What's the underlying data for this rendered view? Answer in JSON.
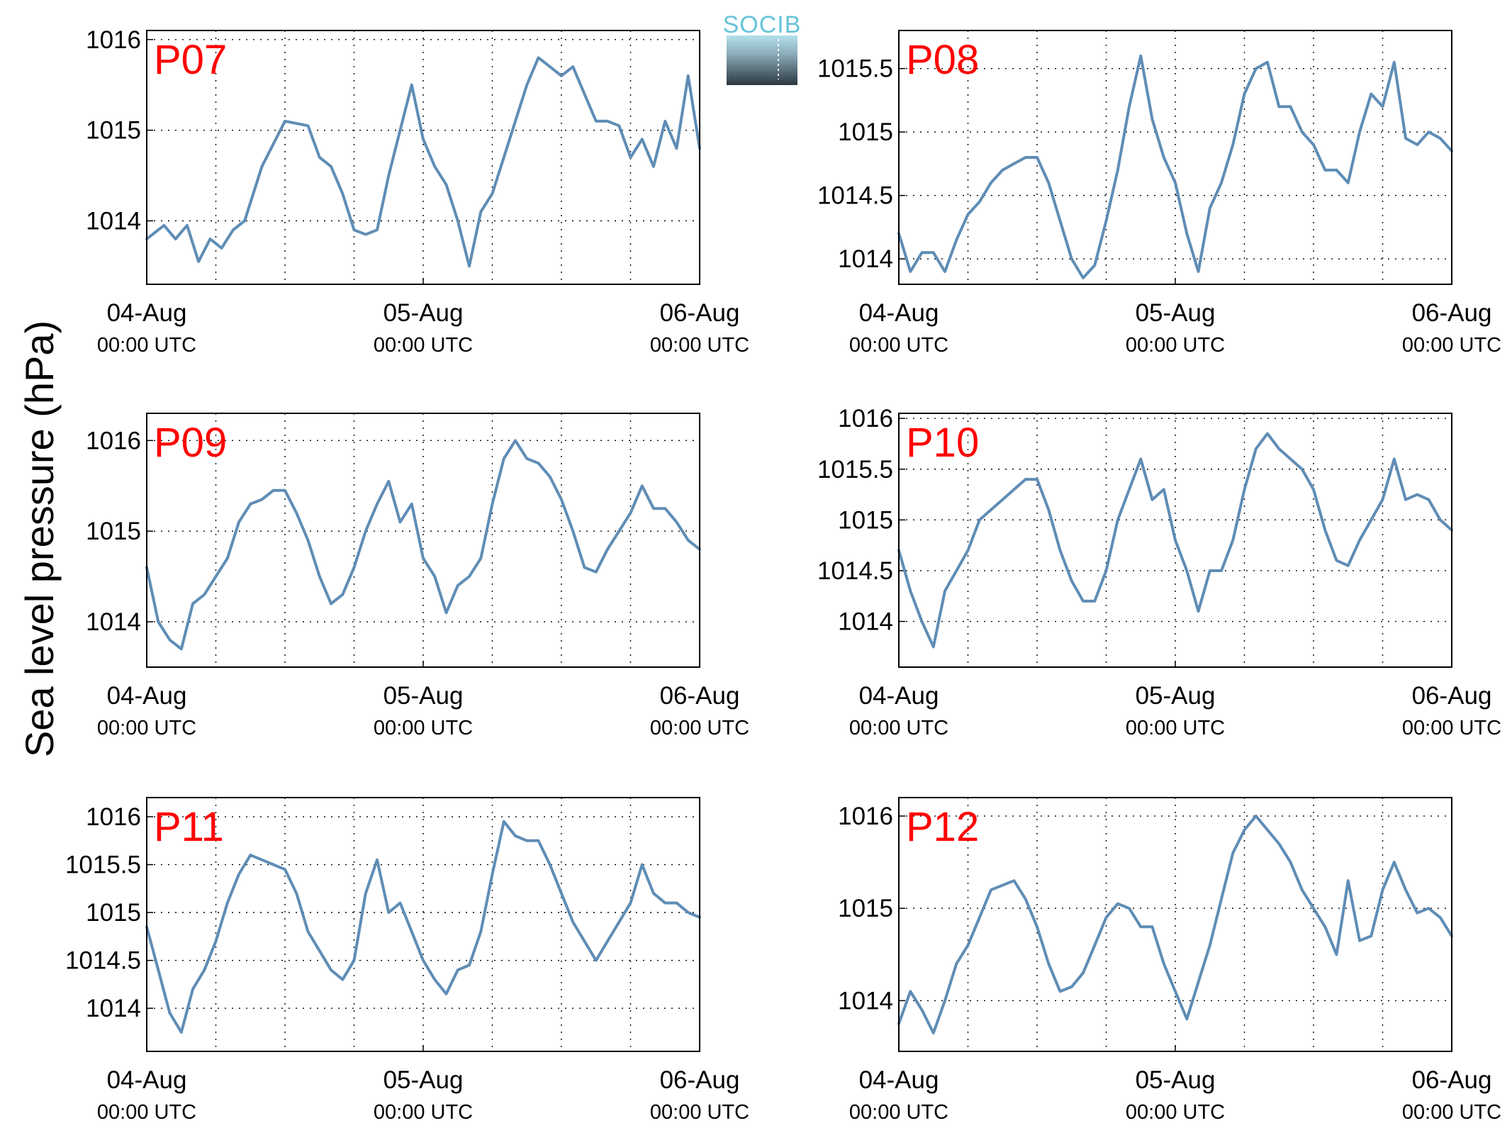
{
  "figure": {
    "ylabel": "Sea level pressure (hPa)",
    "logo_text": "SOCIB"
  },
  "colors": {
    "line": "#5f8db5",
    "panel_label": "#ff0000",
    "grid": "#000000",
    "logo_text": "#66c3d9",
    "logo_dark": "#2b3740"
  },
  "chart_data": [
    {
      "type": "line",
      "title": "P07",
      "x_range": [
        "2014-08-04 00:00",
        "2014-08-06 00:00"
      ],
      "x_ticks": [
        {
          "x": "2014-08-04 00:00",
          "label": "04-Aug",
          "sublabel": "00:00 UTC"
        },
        {
          "x": "2014-08-05 00:00",
          "label": "05-Aug",
          "sublabel": "00:00 UTC"
        },
        {
          "x": "2014-08-06 00:00",
          "label": "06-Aug",
          "sublabel": "00:00 UTC"
        }
      ],
      "ylim": [
        1013.3,
        1016.1
      ],
      "y_ticks": [
        {
          "v": 1014,
          "label": "1014"
        },
        {
          "v": 1015,
          "label": "1015"
        },
        {
          "v": 1016,
          "label": "1016"
        }
      ],
      "grid": true,
      "series": [
        {
          "x_hours": [
            0,
            1.5,
            2.5,
            3.5,
            4.5,
            5.5,
            6.5,
            7.5,
            8.5,
            10,
            12,
            14,
            15,
            16,
            17,
            18,
            19,
            20,
            21,
            22,
            23,
            24,
            25,
            26,
            27,
            28,
            29,
            30,
            31,
            32,
            33,
            34,
            35,
            36,
            37,
            38,
            39,
            40,
            41,
            42,
            43,
            44,
            45,
            46,
            47,
            48
          ],
          "values": [
            1013.8,
            1013.95,
            1013.8,
            1013.95,
            1013.55,
            1013.8,
            1013.7,
            1013.9,
            1014.0,
            1014.6,
            1015.1,
            1015.05,
            1014.7,
            1014.6,
            1014.3,
            1013.9,
            1013.85,
            1013.9,
            1014.5,
            1015.0,
            1015.5,
            1014.9,
            1014.6,
            1014.4,
            1014.0,
            1013.5,
            1014.1,
            1014.3,
            1014.7,
            1015.1,
            1015.5,
            1015.8,
            1015.7,
            1015.6,
            1015.7,
            1015.4,
            1015.1,
            1015.1,
            1015.05,
            1014.7,
            1014.9,
            1014.6,
            1015.1,
            1014.8,
            1015.6,
            1014.8
          ]
        }
      ]
    },
    {
      "type": "line",
      "title": "P08",
      "x_range": [
        "2014-08-04 00:00",
        "2014-08-06 00:00"
      ],
      "x_ticks": [
        {
          "x": "2014-08-04 00:00",
          "label": "04-Aug",
          "sublabel": "00:00 UTC"
        },
        {
          "x": "2014-08-05 00:00",
          "label": "05-Aug",
          "sublabel": "00:00 UTC"
        },
        {
          "x": "2014-08-06 00:00",
          "label": "06-Aug",
          "sublabel": "00:00 UTC"
        }
      ],
      "ylim": [
        1013.8,
        1015.8
      ],
      "y_ticks": [
        {
          "v": 1014,
          "label": "1014"
        },
        {
          "v": 1014.5,
          "label": "1014.5"
        },
        {
          "v": 1015,
          "label": "1015"
        },
        {
          "v": 1015.5,
          "label": "1015.5"
        }
      ],
      "grid": true,
      "series": [
        {
          "x_hours": [
            0,
            1,
            2,
            3,
            4,
            5,
            6,
            7,
            8,
            9,
            10,
            11,
            12,
            13,
            14,
            15,
            16,
            17,
            18,
            19,
            20,
            21,
            22,
            23,
            24,
            25,
            26,
            27,
            28,
            29,
            30,
            31,
            32,
            33,
            34,
            35,
            36,
            37,
            38,
            39,
            40,
            41,
            42,
            43,
            44,
            45,
            46,
            47,
            48
          ],
          "values": [
            1014.2,
            1013.9,
            1014.05,
            1014.05,
            1013.9,
            1014.15,
            1014.35,
            1014.45,
            1014.6,
            1014.7,
            1014.75,
            1014.8,
            1014.8,
            1014.6,
            1014.3,
            1014.0,
            1013.85,
            1013.95,
            1014.3,
            1014.7,
            1015.2,
            1015.6,
            1015.1,
            1014.8,
            1014.6,
            1014.2,
            1013.9,
            1014.4,
            1014.6,
            1014.9,
            1015.3,
            1015.5,
            1015.55,
            1015.2,
            1015.2,
            1015.0,
            1014.9,
            1014.7,
            1014.7,
            1014.6,
            1015.0,
            1015.3,
            1015.2,
            1015.55,
            1014.95,
            1014.9,
            1015.0,
            1014.95,
            1014.85
          ]
        }
      ]
    },
    {
      "type": "line",
      "title": "P09",
      "x_range": [
        "2014-08-04 00:00",
        "2014-08-06 00:00"
      ],
      "x_ticks": [
        {
          "x": "2014-08-04 00:00",
          "label": "04-Aug",
          "sublabel": "00:00 UTC"
        },
        {
          "x": "2014-08-05 00:00",
          "label": "05-Aug",
          "sublabel": "00:00 UTC"
        },
        {
          "x": "2014-08-06 00:00",
          "label": "06-Aug",
          "sublabel": "00:00 UTC"
        }
      ],
      "ylim": [
        1013.5,
        1016.3
      ],
      "y_ticks": [
        {
          "v": 1014,
          "label": "1014"
        },
        {
          "v": 1015,
          "label": "1015"
        },
        {
          "v": 1016,
          "label": "1016"
        }
      ],
      "grid": true,
      "series": [
        {
          "x_hours": [
            0,
            1,
            2,
            3,
            4,
            5,
            6,
            7,
            8,
            9,
            10,
            11,
            12,
            13,
            14,
            15,
            16,
            17,
            18,
            19,
            20,
            21,
            22,
            23,
            24,
            25,
            26,
            27,
            28,
            29,
            30,
            31,
            32,
            33,
            34,
            35,
            36,
            37,
            38,
            39,
            40,
            41,
            42,
            43,
            44,
            45,
            46,
            47,
            48
          ],
          "values": [
            1014.6,
            1014.0,
            1013.8,
            1013.7,
            1014.2,
            1014.3,
            1014.5,
            1014.7,
            1015.1,
            1015.3,
            1015.35,
            1015.45,
            1015.45,
            1015.2,
            1014.9,
            1014.5,
            1014.2,
            1014.3,
            1014.6,
            1015.0,
            1015.3,
            1015.55,
            1015.1,
            1015.3,
            1014.7,
            1014.5,
            1014.1,
            1014.4,
            1014.5,
            1014.7,
            1015.3,
            1015.8,
            1016.0,
            1015.8,
            1015.75,
            1015.6,
            1015.35,
            1015.0,
            1014.6,
            1014.55,
            1014.8,
            1015.0,
            1015.2,
            1015.5,
            1015.25,
            1015.25,
            1015.1,
            1014.9,
            1014.8
          ]
        }
      ]
    },
    {
      "type": "line",
      "title": "P10",
      "x_range": [
        "2014-08-04 00:00",
        "2014-08-06 00:00"
      ],
      "x_ticks": [
        {
          "x": "2014-08-04 00:00",
          "label": "04-Aug",
          "sublabel": "00:00 UTC"
        },
        {
          "x": "2014-08-05 00:00",
          "label": "05-Aug",
          "sublabel": "00:00 UTC"
        },
        {
          "x": "2014-08-06 00:00",
          "label": "06-Aug",
          "sublabel": "00:00 UTC"
        }
      ],
      "ylim": [
        1013.55,
        1016.05
      ],
      "y_ticks": [
        {
          "v": 1014,
          "label": "1014"
        },
        {
          "v": 1014.5,
          "label": "1014.5"
        },
        {
          "v": 1015,
          "label": "1015"
        },
        {
          "v": 1015.5,
          "label": "1015.5"
        },
        {
          "v": 1016,
          "label": "1016"
        }
      ],
      "grid": true,
      "series": [
        {
          "x_hours": [
            0,
            1,
            2,
            3,
            4,
            5,
            6,
            7,
            8,
            9,
            10,
            11,
            12,
            13,
            14,
            15,
            16,
            17,
            18,
            19,
            20,
            21,
            22,
            23,
            24,
            25,
            26,
            27,
            28,
            29,
            30,
            31,
            32,
            33,
            34,
            35,
            36,
            37,
            38,
            39,
            40,
            41,
            42,
            43,
            44,
            45,
            46,
            47,
            48
          ],
          "values": [
            1014.7,
            1014.3,
            1014.0,
            1013.75,
            1014.3,
            1014.5,
            1014.7,
            1015.0,
            1015.1,
            1015.2,
            1015.3,
            1015.4,
            1015.4,
            1015.1,
            1014.7,
            1014.4,
            1014.2,
            1014.2,
            1014.5,
            1015.0,
            1015.3,
            1015.6,
            1015.2,
            1015.3,
            1014.8,
            1014.5,
            1014.1,
            1014.5,
            1014.5,
            1014.8,
            1015.3,
            1015.7,
            1015.85,
            1015.7,
            1015.6,
            1015.5,
            1015.3,
            1014.9,
            1014.6,
            1014.55,
            1014.8,
            1015.0,
            1015.2,
            1015.6,
            1015.2,
            1015.25,
            1015.2,
            1015.0,
            1014.9
          ]
        }
      ]
    },
    {
      "type": "line",
      "title": "P11",
      "x_range": [
        "2014-08-04 00:00",
        "2014-08-06 00:00"
      ],
      "x_ticks": [
        {
          "x": "2014-08-04 00:00",
          "label": "04-Aug",
          "sublabel": "00:00 UTC"
        },
        {
          "x": "2014-08-05 00:00",
          "label": "05-Aug",
          "sublabel": "00:00 UTC"
        },
        {
          "x": "2014-08-06 00:00",
          "label": "06-Aug",
          "sublabel": "00:00 UTC"
        }
      ],
      "ylim": [
        1013.55,
        1016.2
      ],
      "y_ticks": [
        {
          "v": 1014,
          "label": "1014"
        },
        {
          "v": 1014.5,
          "label": "1014.5"
        },
        {
          "v": 1015,
          "label": "1015"
        },
        {
          "v": 1015.5,
          "label": "1015.5"
        },
        {
          "v": 1016,
          "label": "1016"
        }
      ],
      "grid": true,
      "series": [
        {
          "x_hours": [
            0,
            1,
            2,
            3,
            4,
            5,
            6,
            7,
            8,
            9,
            10,
            11,
            12,
            13,
            14,
            15,
            16,
            17,
            18,
            19,
            20,
            21,
            22,
            23,
            24,
            25,
            26,
            27,
            28,
            29,
            30,
            31,
            32,
            33,
            34,
            35,
            36,
            37,
            38,
            39,
            40,
            41,
            42,
            43,
            44,
            45,
            46,
            47,
            48
          ],
          "values": [
            1014.85,
            1014.4,
            1013.95,
            1013.75,
            1014.2,
            1014.4,
            1014.7,
            1015.1,
            1015.4,
            1015.6,
            1015.55,
            1015.5,
            1015.45,
            1015.2,
            1014.8,
            1014.6,
            1014.4,
            1014.3,
            1014.5,
            1015.2,
            1015.55,
            1015.0,
            1015.1,
            1014.8,
            1014.5,
            1014.3,
            1014.15,
            1014.4,
            1014.45,
            1014.8,
            1015.4,
            1015.95,
            1015.8,
            1015.75,
            1015.75,
            1015.5,
            1015.2,
            1014.9,
            1014.7,
            1014.5,
            1014.7,
            1014.9,
            1015.1,
            1015.5,
            1015.2,
            1015.1,
            1015.1,
            1015.0,
            1014.95
          ]
        }
      ]
    },
    {
      "type": "line",
      "title": "P12",
      "x_range": [
        "2014-08-04 00:00",
        "2014-08-06 00:00"
      ],
      "x_ticks": [
        {
          "x": "2014-08-04 00:00",
          "label": "04-Aug",
          "sublabel": "00:00 UTC"
        },
        {
          "x": "2014-08-05 00:00",
          "label": "05-Aug",
          "sublabel": "00:00 UTC"
        },
        {
          "x": "2014-08-06 00:00",
          "label": "06-Aug",
          "sublabel": "00:00 UTC"
        }
      ],
      "ylim": [
        1013.45,
        1016.2
      ],
      "y_ticks": [
        {
          "v": 1014,
          "label": "1014"
        },
        {
          "v": 1015,
          "label": "1015"
        },
        {
          "v": 1016,
          "label": "1016"
        }
      ],
      "grid": true,
      "series": [
        {
          "x_hours": [
            0,
            1,
            2,
            3,
            4,
            5,
            6,
            7,
            8,
            9,
            10,
            11,
            12,
            13,
            14,
            15,
            16,
            17,
            18,
            19,
            20,
            21,
            22,
            23,
            24,
            25,
            26,
            27,
            28,
            29,
            30,
            31,
            32,
            33,
            34,
            35,
            36,
            37,
            38,
            39,
            40,
            41,
            42,
            43,
            44,
            45,
            46,
            47,
            48
          ],
          "values": [
            1013.75,
            1014.1,
            1013.9,
            1013.65,
            1014.0,
            1014.4,
            1014.6,
            1014.9,
            1015.2,
            1015.25,
            1015.3,
            1015.1,
            1014.8,
            1014.4,
            1014.1,
            1014.15,
            1014.3,
            1014.6,
            1014.9,
            1015.05,
            1015.0,
            1014.8,
            1014.8,
            1014.4,
            1014.1,
            1013.8,
            1014.2,
            1014.6,
            1015.1,
            1015.6,
            1015.85,
            1016.0,
            1015.85,
            1015.7,
            1015.5,
            1015.2,
            1015.0,
            1014.8,
            1014.5,
            1015.3,
            1014.65,
            1014.7,
            1015.2,
            1015.5,
            1015.2,
            1014.95,
            1015.0,
            1014.9,
            1014.7
          ]
        }
      ]
    }
  ]
}
